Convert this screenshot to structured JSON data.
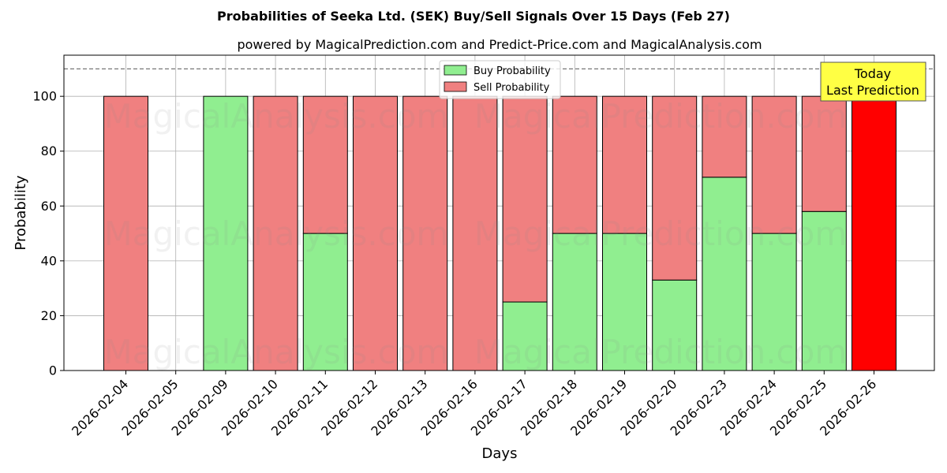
{
  "chart_data": {
    "type": "bar",
    "title": "Probabilities of Seeka Ltd. (SEK) Buy/Sell Signals Over 15 Days (Feb 27)",
    "subtitle": "powered by MagicalPrediction.com and Predict-Price.com and MagicalAnalysis.com",
    "xlabel": "Days",
    "ylabel": "Probability",
    "ylim": [
      0,
      115
    ],
    "yticks": [
      0,
      20,
      40,
      60,
      80,
      100
    ],
    "grid": true,
    "legend_position": "top-center",
    "reference_line": 110,
    "categories": [
      "2026-02-04",
      "2026-02-05",
      "2026-02-09",
      "2026-02-10",
      "2026-02-11",
      "2026-02-12",
      "2026-02-13",
      "2026-02-16",
      "2026-02-17",
      "2026-02-18",
      "2026-02-19",
      "2026-02-20",
      "2026-02-23",
      "2026-02-24",
      "2026-02-25",
      "2026-02-26"
    ],
    "series": [
      {
        "name": "Buy Probability",
        "color": "#90ee90",
        "values": [
          0,
          0,
          100,
          0,
          50,
          0,
          0,
          0,
          25,
          50,
          50,
          33,
          70.5,
          50,
          58,
          0
        ]
      },
      {
        "name": "Sell Probability",
        "color": "#f08080",
        "values": [
          100,
          0,
          0,
          100,
          50,
          100,
          100,
          100,
          75,
          50,
          50,
          67,
          29.5,
          50,
          42,
          100
        ]
      }
    ],
    "highlight": {
      "index": 15,
      "color": "#ff0000"
    },
    "annotation": {
      "lines": [
        "Today",
        "Last Prediction"
      ],
      "background": "#ffff44"
    },
    "watermarks": [
      "MagicalAnalysis.com",
      "MagicalPrediction.com"
    ]
  }
}
